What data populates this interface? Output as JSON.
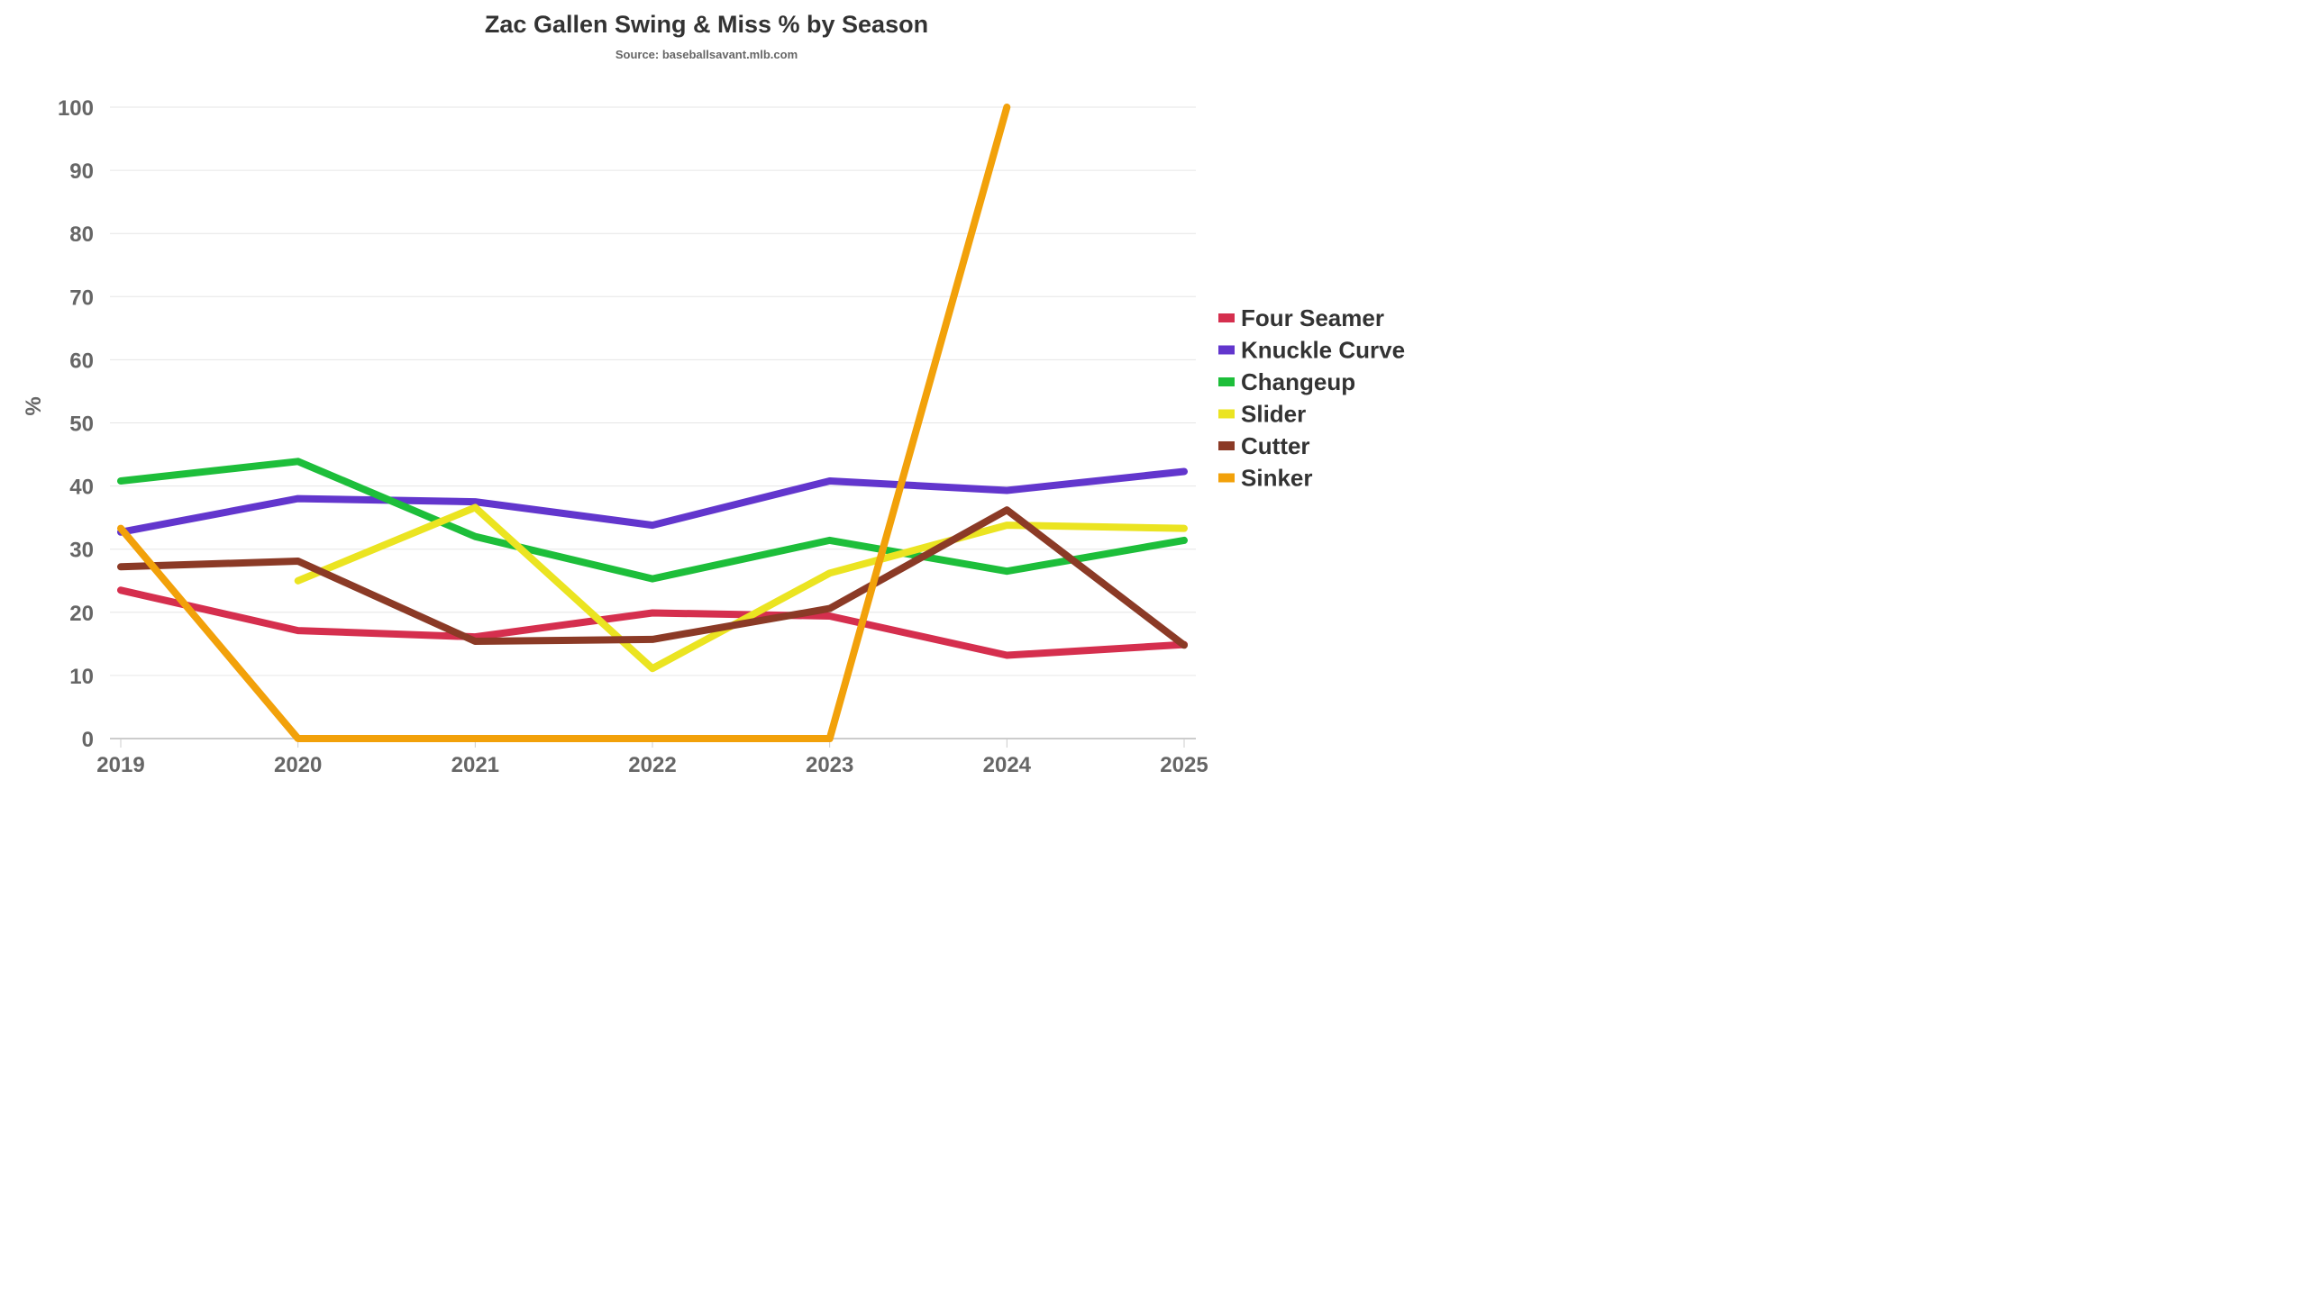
{
  "chart_data": {
    "type": "line",
    "title": "Zac Gallen Swing & Miss % by Season",
    "subtitle": "Source: baseballsavant.mlb.com",
    "xlabel": "",
    "ylabel": "%",
    "categories": [
      "2019",
      "2020",
      "2021",
      "2022",
      "2023",
      "2024",
      "2025"
    ],
    "ylim": [
      0,
      100
    ],
    "yticks": [
      0,
      10,
      20,
      30,
      40,
      50,
      60,
      70,
      80,
      90,
      100
    ],
    "grid": true,
    "legend_position": "right",
    "series": [
      {
        "name": "Four Seamer",
        "color": "#d52f4e",
        "values": [
          23.5,
          17.1,
          16.1,
          19.9,
          19.4,
          13.2,
          14.9
        ]
      },
      {
        "name": "Knuckle Curve",
        "color": "#6236cd",
        "values": [
          32.7,
          38.0,
          37.5,
          33.8,
          40.8,
          39.3,
          42.3
        ]
      },
      {
        "name": "Changeup",
        "color": "#1dbe3a",
        "values": [
          40.8,
          43.9,
          32.0,
          25.3,
          31.4,
          26.5,
          31.4
        ]
      },
      {
        "name": "Slider",
        "color": "#ebe421",
        "values": [
          null,
          25.0,
          36.6,
          11.1,
          26.2,
          33.8,
          33.3
        ]
      },
      {
        "name": "Cutter",
        "color": "#8b3a26",
        "values": [
          27.2,
          28.1,
          15.4,
          15.7,
          20.6,
          36.2,
          14.8
        ]
      },
      {
        "name": "Sinker",
        "color": "#f2a10a",
        "values": [
          33.3,
          0,
          0,
          0,
          0,
          100,
          null
        ]
      }
    ]
  }
}
